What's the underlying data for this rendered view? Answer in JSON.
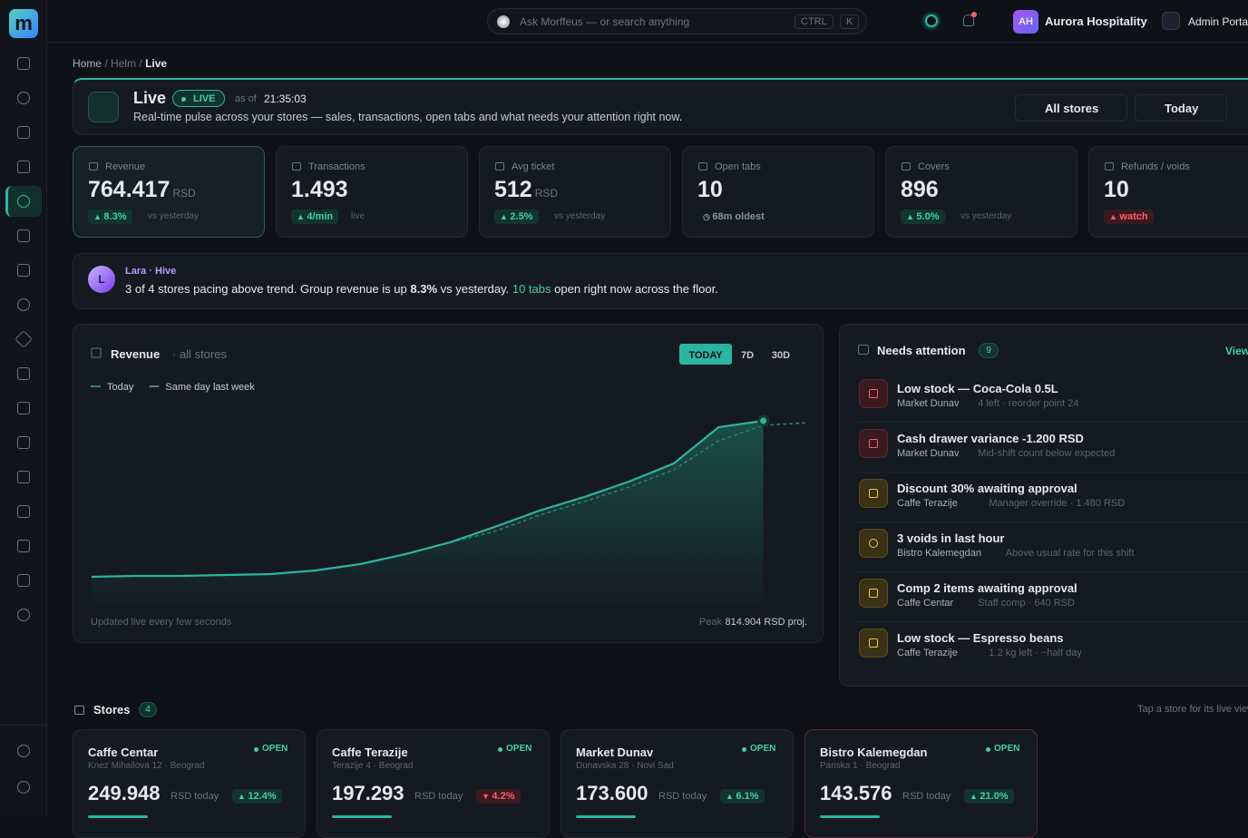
{
  "search": {
    "placeholder": "Ask Morffeus — or search anything",
    "keys": [
      "CTRL",
      "K"
    ]
  },
  "account": {
    "initials": "AH",
    "name": "Aurora Hospitality",
    "portal": "Admin Portal"
  },
  "breadcrumb": [
    "Home",
    "Helm",
    "Live"
  ],
  "header": {
    "title": "Live",
    "badge": "LIVE",
    "as_of_label": "as of",
    "time": "21:35:03",
    "subtitle": "Real-time pulse across your stores — sales, transactions, open tabs and what needs your attention right now.",
    "filters": [
      "All stores",
      "Today"
    ]
  },
  "kpis": [
    {
      "label": "Revenue",
      "value": "764.417",
      "unit": "RSD",
      "change": "8.3%",
      "note": "vs yesterday",
      "trend": "up"
    },
    {
      "label": "Transactions",
      "value": "1.493",
      "change": "4/min",
      "note": "live",
      "trend": "up"
    },
    {
      "label": "Avg ticket",
      "value": "512",
      "unit": "RSD",
      "change": "2.5%",
      "note": "vs yesterday",
      "trend": "up"
    },
    {
      "label": "Open tabs",
      "value": "10",
      "change": "68m oldest",
      "trend": "neutral"
    },
    {
      "label": "Covers",
      "value": "896",
      "change": "5.0%",
      "note": "vs yesterday",
      "trend": "up"
    },
    {
      "label": "Refunds / voids",
      "value": "10",
      "change": "watch",
      "trend": "alert"
    }
  ],
  "insight": {
    "initial": "L",
    "author": "Lara · Hive",
    "text": [
      "3 of 4 stores pacing above trend. Group revenue is up ",
      "8.3%",
      " vs yesterday. ",
      "10 tabs",
      " open right now across the floor."
    ]
  },
  "chart_data": {
    "type": "line",
    "title": "Revenue",
    "subtitle": "· all stores",
    "ranges": [
      "TODAY",
      "7D",
      "30D"
    ],
    "ylim": [
      0,
      850000
    ],
    "series": [
      {
        "name": "Today",
        "color": "#2bb5a0",
        "values": [
          113500,
          117300,
          117300,
          121100,
          124900,
          140000,
          166500,
          208100,
          257300,
          321600,
          389800,
          446500,
          510800,
          586500,
          737900,
          764400,
          null
        ]
      },
      {
        "name": "Same day last week",
        "color": "#2a8f80",
        "values": [
          113500,
          117300,
          117300,
          121100,
          124900,
          140000,
          166500,
          208100,
          257300,
          302700,
          370800,
          427600,
          488100,
          560000,
          681100,
          745400,
          756800
        ]
      }
    ],
    "footer": "Updated live every few seconds",
    "peak_label": "Peak",
    "peak": "814.904 RSD proj."
  },
  "attention": {
    "title": "Needs attention",
    "count": "9",
    "link": "View",
    "items": [
      {
        "title": "Low stock — Coca-Cola 0.5L",
        "store": "Market Dunav",
        "detail": "4 left · reorder point 24",
        "level": "red"
      },
      {
        "title": "Cash drawer variance -1.200 RSD",
        "store": "Market Dunav",
        "detail": "Mid-shift count below expected",
        "level": "red"
      },
      {
        "title": "Discount 30% awaiting approval",
        "store": "Caffe Terazije",
        "detail": "Manager override · 1.480 RSD",
        "level": "yellow"
      },
      {
        "title": "3 voids in last hour",
        "store": "Bistro Kalemegdan",
        "detail": "Above usual rate for this shift",
        "level": "yellow"
      },
      {
        "title": "Comp 2 items awaiting approval",
        "store": "Caffe Centar",
        "detail": "Staff comp · 640 RSD",
        "level": "yellow"
      },
      {
        "title": "Low stock — Espresso beans",
        "store": "Caffe Terazije",
        "detail": "1.2 kg left · ~half day",
        "level": "yellow"
      }
    ]
  },
  "stores": {
    "title": "Stores",
    "count": "4",
    "hint": "Tap a store for its live view",
    "items": [
      {
        "name": "Caffe Centar",
        "address": "Knez Mihailova 12 · Beograd",
        "status": "OPEN",
        "revenue": "249.948",
        "unit": "RSD today",
        "change": "12.4%",
        "trend": "up"
      },
      {
        "name": "Caffe Terazije",
        "address": "Terazije 4 · Beograd",
        "status": "OPEN",
        "revenue": "197.293",
        "unit": "RSD today",
        "change": "4.2%",
        "trend": "down"
      },
      {
        "name": "Market Dunav",
        "address": "Dunavska 28 · Novi Sad",
        "status": "OPEN",
        "revenue": "173.600",
        "unit": "RSD today",
        "change": "6.1%",
        "trend": "up"
      },
      {
        "name": "Bistro Kalemegdan",
        "address": "Pariska 1 · Beograd",
        "status": "OPEN",
        "revenue": "143.576",
        "unit": "RSD today",
        "change": "21.0%",
        "trend": "up"
      }
    ]
  }
}
